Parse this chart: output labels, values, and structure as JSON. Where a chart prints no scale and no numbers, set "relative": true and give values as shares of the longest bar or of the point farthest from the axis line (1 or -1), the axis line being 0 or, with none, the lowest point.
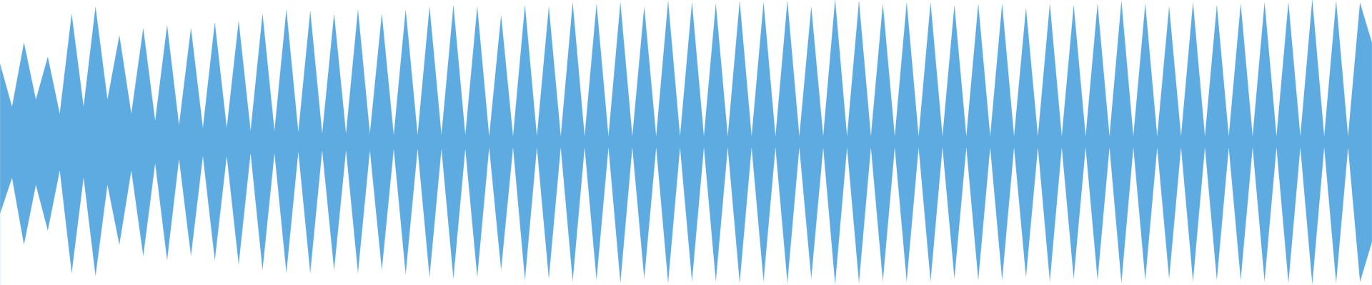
{
  "chart_data": {
    "type": "area",
    "relative": true,
    "categories": [
      null,
      null,
      null,
      null,
      null,
      null,
      null,
      null,
      null,
      null,
      null,
      null,
      null,
      null,
      null,
      null,
      null,
      null,
      null,
      null,
      null,
      null,
      null,
      null,
      null,
      null,
      null,
      null,
      null,
      null,
      null,
      null,
      null,
      null,
      null,
      null,
      null,
      null,
      null,
      null,
      null,
      null,
      null,
      null,
      null,
      null,
      null,
      null,
      null,
      null,
      null,
      null,
      null,
      null,
      null,
      null,
      null,
      null,
      null,
      null,
      null,
      null,
      null,
      null,
      null,
      null,
      null,
      null,
      null,
      null,
      null,
      null,
      null,
      null,
      null,
      null,
      null,
      null,
      null,
      null,
      null,
      null,
      null,
      null,
      null,
      null,
      null,
      null,
      null,
      null,
      null,
      null,
      null,
      null,
      null,
      null,
      null,
      null,
      null,
      null,
      null,
      null,
      null,
      null,
      null,
      null,
      null,
      null,
      null,
      null,
      null,
      null,
      null,
      null,
      null,
      null
    ],
    "series": [
      {
        "color": "#5dabe0",
        "values": [
          0.775,
          0.625,
          0.85,
          0.65,
          0.8,
          0.6,
          0.95,
          0.625,
          0.975,
          0.65,
          0.875,
          0.6,
          0.9,
          0.575,
          0.91,
          0.56,
          0.9,
          0.55,
          0.92,
          0.55,
          0.925,
          0.54,
          0.95,
          0.54,
          0.965,
          0.535,
          0.96,
          0.53,
          0.95,
          0.53,
          0.965,
          0.53,
          0.95,
          0.525,
          0.965,
          0.525,
          0.975,
          0.525,
          0.98,
          0.525,
          0.975,
          0.52,
          0.945,
          0.52,
          0.98,
          0.52,
          0.975,
          0.52,
          0.99,
          0.52,
          0.985,
          0.52,
          0.99,
          0.52,
          0.975,
          0.52,
          0.995,
          0.52,
          0.99,
          0.52,
          0.985,
          0.52,
          0.995,
          0.52,
          0.99,
          0.52,
          0.995,
          0.52,
          0.975,
          0.52,
          1.0,
          0.52,
          0.995,
          0.52,
          0.985,
          0.52,
          0.99,
          0.52,
          0.99,
          0.52,
          0.98,
          0.52,
          0.985,
          0.52,
          0.985,
          0.52,
          0.97,
          0.52,
          0.985,
          0.52,
          0.98,
          0.52,
          0.985,
          0.52,
          0.995,
          0.52,
          0.985,
          0.52,
          0.975,
          0.52,
          0.99,
          0.52,
          0.98,
          0.52,
          0.985,
          0.52,
          0.99,
          0.52,
          0.99,
          0.52,
          1.0,
          0.52,
          0.995,
          0.52,
          0.99,
          0.85
        ]
      },
      {
        "color": "#ffffff",
        "values": [
          0.25,
          0.375,
          0.14,
          0.35,
          0.19,
          0.4,
          0.04,
          0.375,
          0.03,
          0.35,
          0.14,
          0.4,
          0.1,
          0.425,
          0.085,
          0.44,
          0.1,
          0.45,
          0.085,
          0.45,
          0.07,
          0.46,
          0.05,
          0.46,
          0.04,
          0.465,
          0.04,
          0.47,
          0.05,
          0.47,
          0.04,
          0.47,
          0.05,
          0.475,
          0.035,
          0.475,
          0.025,
          0.475,
          0.02,
          0.475,
          0.025,
          0.48,
          0.05,
          0.48,
          0.015,
          0.48,
          0.02,
          0.48,
          0.01,
          0.48,
          0.015,
          0.48,
          0.005,
          0.48,
          0.02,
          0.48,
          0.005,
          0.48,
          0.01,
          0.48,
          0.01,
          0.48,
          0.005,
          0.48,
          0.01,
          0.48,
          0.005,
          0.48,
          0.02,
          0.48,
          0.0,
          0.48,
          0.005,
          0.48,
          0.01,
          0.48,
          0.01,
          0.48,
          0.01,
          0.48,
          0.02,
          0.48,
          0.015,
          0.48,
          0.015,
          0.48,
          0.025,
          0.48,
          0.01,
          0.48,
          0.02,
          0.48,
          0.015,
          0.48,
          0.005,
          0.48,
          0.015,
          0.48,
          0.02,
          0.48,
          0.01,
          0.48,
          0.015,
          0.48,
          0.015,
          0.48,
          0.01,
          0.48,
          0.005,
          0.48,
          0.0,
          0.48,
          0.005,
          0.48,
          0.01,
          0.15
        ]
      }
    ]
  }
}
